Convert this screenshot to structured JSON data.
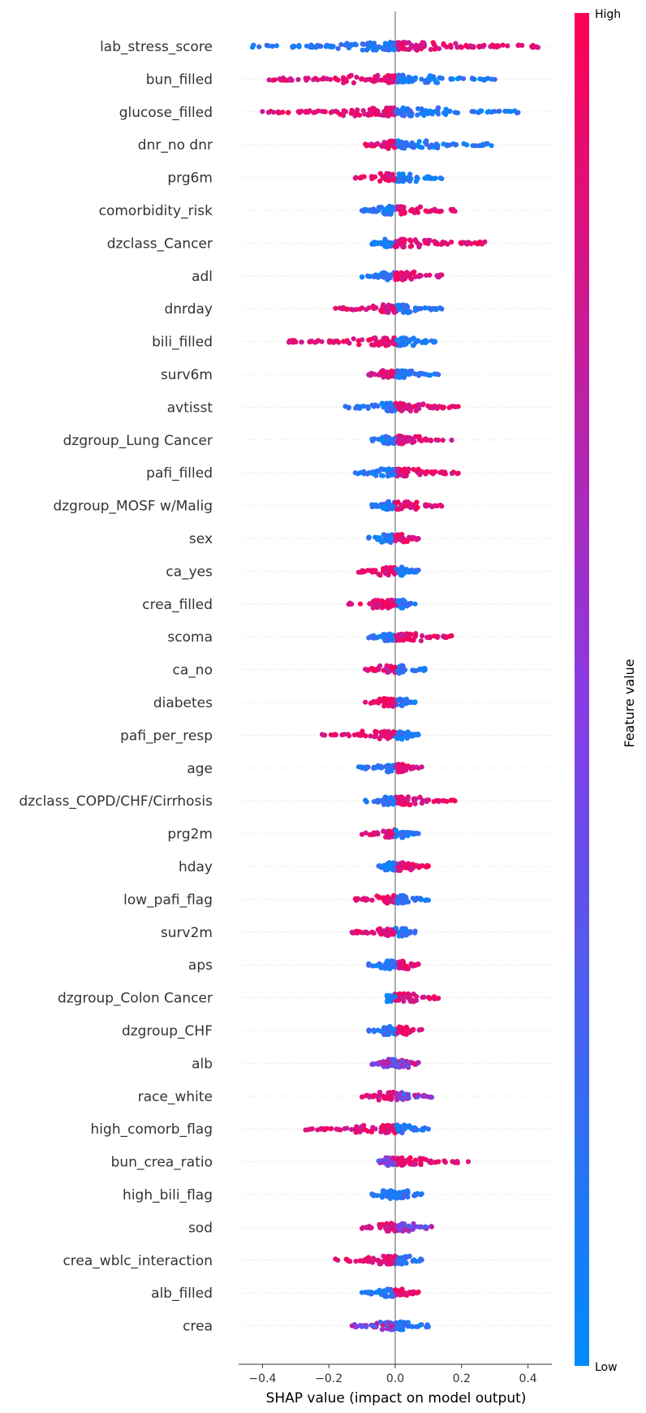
{
  "chart_data": {
    "type": "scatter",
    "subtype": "shap-beeswarm",
    "xlabel": "SHAP value (impact on model output)",
    "xlim": [
      -0.47,
      0.47
    ],
    "x_ticks": [
      -0.4,
      -0.2,
      0.0,
      0.2,
      0.4
    ],
    "x_tick_labels": [
      "−0.4",
      "−0.2",
      "0.0",
      "0.2",
      "0.4"
    ],
    "colorbar": {
      "title": "Feature value",
      "high_label": "High",
      "low_label": "Low",
      "high_color": "#ff0052",
      "low_color": "#008bfb"
    },
    "features": [
      {
        "name": "lab_stress_score",
        "min": -0.43,
        "max": 0.43,
        "neg": "low",
        "pos": "high"
      },
      {
        "name": "bun_filled",
        "min": -0.38,
        "max": 0.3,
        "neg": "high",
        "pos": "low"
      },
      {
        "name": "glucose_filled",
        "min": -0.4,
        "max": 0.37,
        "neg": "high",
        "pos": "low"
      },
      {
        "name": "dnr_no dnr",
        "min": -0.09,
        "max": 0.29,
        "neg": "high",
        "pos": "low"
      },
      {
        "name": "prg6m",
        "min": -0.12,
        "max": 0.14,
        "neg": "high",
        "pos": "low"
      },
      {
        "name": "comorbidity_risk",
        "min": -0.1,
        "max": 0.18,
        "neg": "low",
        "pos": "high"
      },
      {
        "name": "dzclass_Cancer",
        "min": -0.07,
        "max": 0.27,
        "neg": "low",
        "pos": "high"
      },
      {
        "name": "adl",
        "min": -0.1,
        "max": 0.14,
        "neg": "low",
        "pos": "high"
      },
      {
        "name": "dnrday",
        "min": -0.18,
        "max": 0.14,
        "neg": "high",
        "pos": "low"
      },
      {
        "name": "bili_filled",
        "min": -0.32,
        "max": 0.12,
        "neg": "high",
        "pos": "low"
      },
      {
        "name": "surv6m",
        "min": -0.08,
        "max": 0.13,
        "neg": "high",
        "pos": "low"
      },
      {
        "name": "avtisst",
        "min": -0.15,
        "max": 0.19,
        "neg": "low",
        "pos": "high"
      },
      {
        "name": "dzgroup_Lung Cancer",
        "min": -0.07,
        "max": 0.17,
        "neg": "low",
        "pos": "high"
      },
      {
        "name": "pafi_filled",
        "min": -0.12,
        "max": 0.19,
        "neg": "low",
        "pos": "high"
      },
      {
        "name": "dzgroup_MOSF w/Malig",
        "min": -0.07,
        "max": 0.14,
        "neg": "low",
        "pos": "high"
      },
      {
        "name": "sex",
        "min": -0.08,
        "max": 0.07,
        "neg": "low",
        "pos": "high"
      },
      {
        "name": "ca_yes",
        "min": -0.11,
        "max": 0.07,
        "neg": "high",
        "pos": "low"
      },
      {
        "name": "crea_filled",
        "min": -0.14,
        "max": 0.06,
        "neg": "high",
        "pos": "low"
      },
      {
        "name": "scoma",
        "min": -0.08,
        "max": 0.17,
        "neg": "low",
        "pos": "high"
      },
      {
        "name": "ca_no",
        "min": -0.09,
        "max": 0.09,
        "neg": "high",
        "pos": "low"
      },
      {
        "name": "diabetes",
        "min": -0.09,
        "max": 0.06,
        "neg": "high",
        "pos": "low"
      },
      {
        "name": "pafi_per_resp",
        "min": -0.22,
        "max": 0.07,
        "neg": "high",
        "pos": "low"
      },
      {
        "name": "age",
        "min": -0.11,
        "max": 0.08,
        "neg": "low",
        "pos": "high"
      },
      {
        "name": "dzclass_COPD/CHF/Cirrhosis",
        "min": -0.09,
        "max": 0.18,
        "neg": "low",
        "pos": "high"
      },
      {
        "name": "prg2m",
        "min": -0.1,
        "max": 0.07,
        "neg": "high",
        "pos": "low"
      },
      {
        "name": "hday",
        "min": -0.05,
        "max": 0.1,
        "neg": "low",
        "pos": "high"
      },
      {
        "name": "low_pafi_flag",
        "min": -0.12,
        "max": 0.1,
        "neg": "high",
        "pos": "low"
      },
      {
        "name": "surv2m",
        "min": -0.13,
        "max": 0.06,
        "neg": "high",
        "pos": "low"
      },
      {
        "name": "aps",
        "min": -0.08,
        "max": 0.07,
        "neg": "low",
        "pos": "high"
      },
      {
        "name": "dzgroup_Colon Cancer",
        "min": 0.0,
        "max": 0.13,
        "neg": "low",
        "pos": "high"
      },
      {
        "name": "dzgroup_CHF",
        "min": -0.08,
        "max": 0.08,
        "neg": "low",
        "pos": "high"
      },
      {
        "name": "alb",
        "min": -0.07,
        "max": 0.07,
        "neg": "mixed",
        "pos": "mixed"
      },
      {
        "name": "race_white",
        "min": -0.1,
        "max": 0.11,
        "neg": "high",
        "pos": "mixed"
      },
      {
        "name": "high_comorb_flag",
        "min": -0.27,
        "max": 0.1,
        "neg": "high",
        "pos": "low"
      },
      {
        "name": "bun_crea_ratio",
        "min": -0.05,
        "max": 0.22,
        "neg": "mixed",
        "pos": "high"
      },
      {
        "name": "high_bili_flag",
        "min": -0.07,
        "max": 0.08,
        "neg": "low",
        "pos": "low"
      },
      {
        "name": "sod",
        "min": -0.1,
        "max": 0.11,
        "neg": "high",
        "pos": "mixed"
      },
      {
        "name": "crea_wblc_interaction",
        "min": -0.18,
        "max": 0.08,
        "neg": "high",
        "pos": "low"
      },
      {
        "name": "alb_filled",
        "min": -0.1,
        "max": 0.07,
        "neg": "low",
        "pos": "high"
      },
      {
        "name": "crea",
        "min": -0.13,
        "max": 0.1,
        "neg": "mixed",
        "pos": "low"
      }
    ]
  }
}
